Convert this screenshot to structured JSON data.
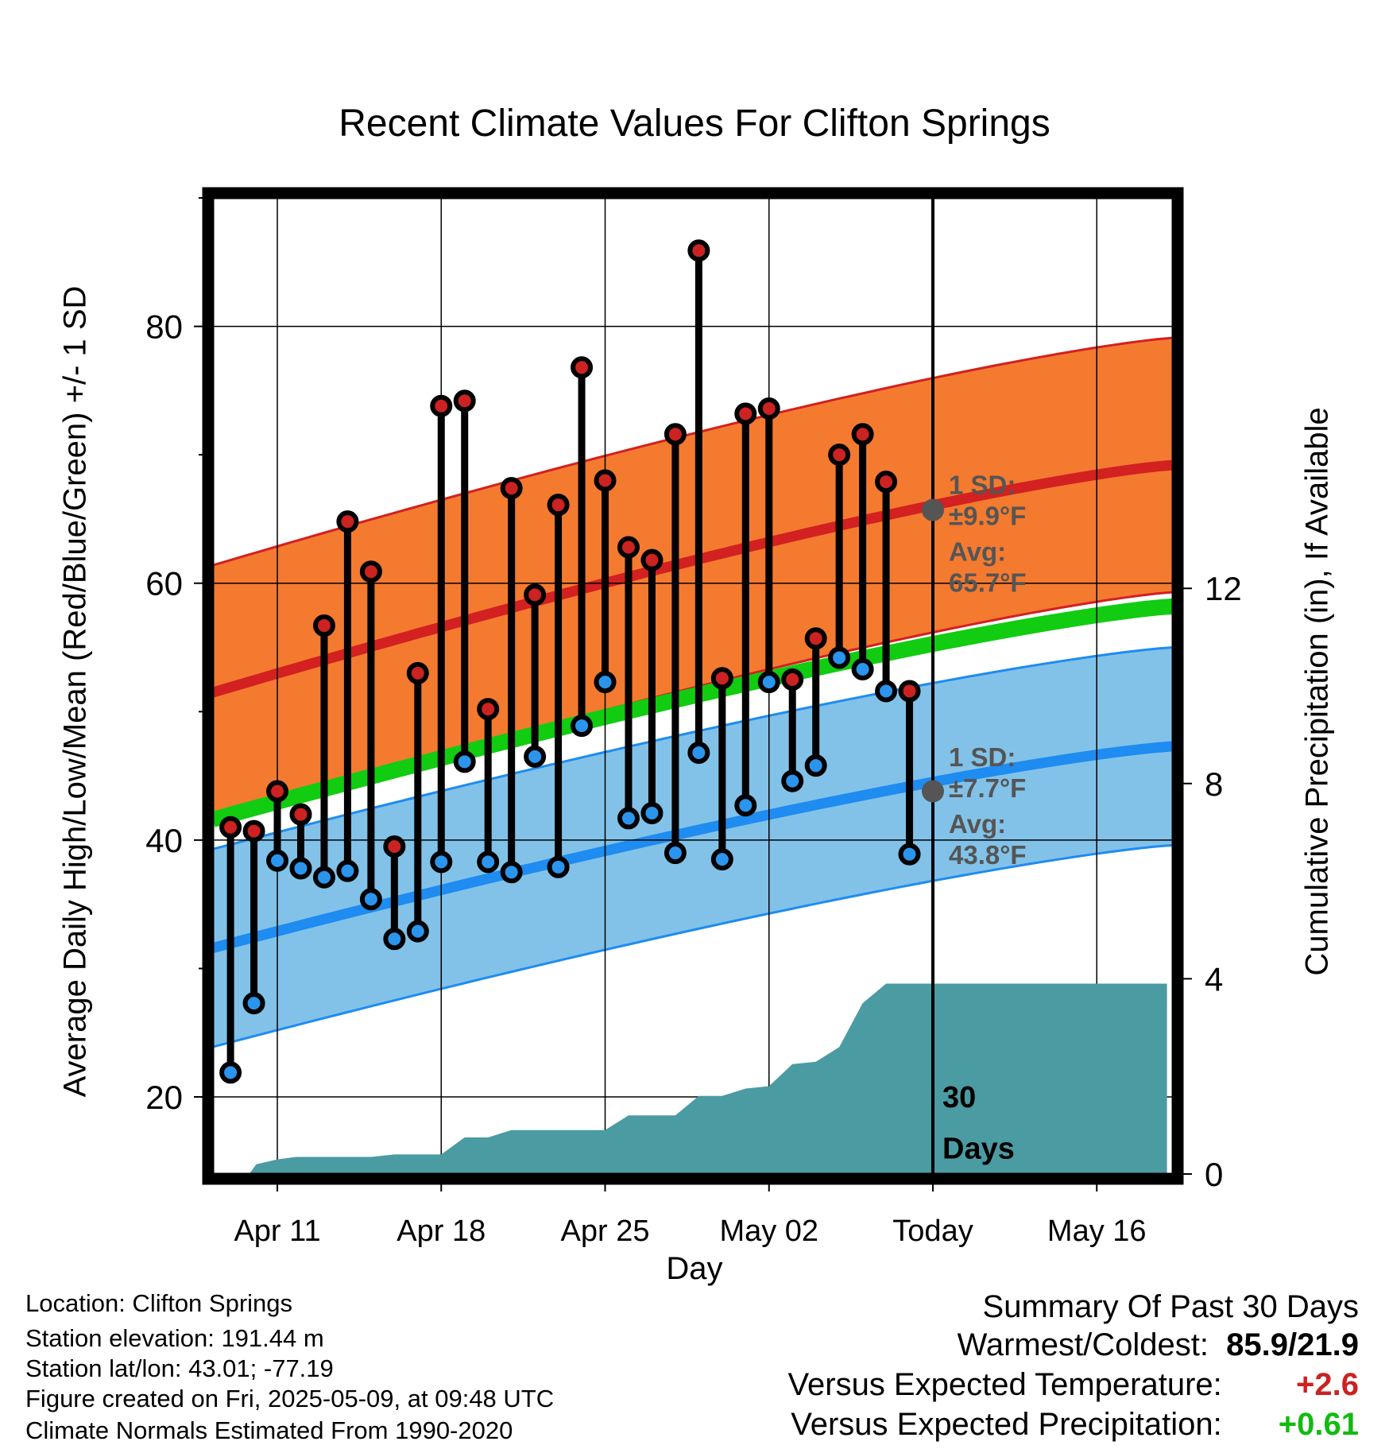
{
  "title": "Recent Climate Values For Clifton Springs",
  "colors": {
    "high_band": "#f47a30",
    "high_line": "#d32020",
    "low_band": "#82c2e8",
    "low_line": "#1e8cf0",
    "mean_line": "#11cc11",
    "precip": "#4b9ba3",
    "marker_high": "#cc2222",
    "marker_low": "#2b95ee"
  },
  "chart_data": {
    "type": "line",
    "title": "Recent Climate Values For Clifton Springs",
    "xlabel": "Day",
    "ylabel": "Average Daily High/Low/Mean (Red/Blue/Green) +/- 1 SD",
    "y2label": "Cumulative Precipitation (in), If Available",
    "xlim": [
      -0.75,
      40.25
    ],
    "ylim": [
      14,
      90
    ],
    "y2lim": [
      0,
      20
    ],
    "x_ticks": [
      {
        "x": 2,
        "label": "Apr 11"
      },
      {
        "x": 9,
        "label": "Apr 18"
      },
      {
        "x": 16,
        "label": "Apr 25"
      },
      {
        "x": 23,
        "label": "May 02"
      },
      {
        "x": 30,
        "label": "Today"
      },
      {
        "x": 37,
        "label": "May 16"
      }
    ],
    "y_ticks": [
      20,
      40,
      60,
      80
    ],
    "y_minor_ticks": [
      30,
      50,
      70,
      90
    ],
    "y2_ticks": [
      0,
      4,
      8,
      12
    ],
    "grid": true,
    "today_x": 30,
    "today_label": [
      "30",
      "Days"
    ],
    "daily_highs": [
      41,
      40.7,
      43.8,
      42,
      56.7,
      64.8,
      60.9,
      39.5,
      53,
      73.8,
      74.2,
      50.2,
      67.4,
      59.1,
      66.1,
      76.8,
      68,
      62.8,
      61.8,
      71.6,
      85.9,
      52.6,
      73.2,
      73.6,
      52.5,
      55.7,
      70,
      71.6,
      67.9,
      51.6
    ],
    "daily_lows": [
      21.9,
      27.3,
      38.4,
      37.8,
      37.1,
      37.6,
      35.4,
      32.3,
      32.9,
      38.3,
      46.1,
      38.3,
      37.5,
      46.5,
      37.9,
      48.9,
      52.3,
      41.7,
      42.1,
      39,
      46.8,
      38.5,
      42.7,
      52.3,
      44.6,
      45.8,
      54.2,
      53.3,
      51.6,
      38.9
    ],
    "normal_high_avg": [
      51.5,
      69.2
    ],
    "normal_low_avg": [
      31.6,
      47.3
    ],
    "high_sd": 9.9,
    "low_sd": 7.7,
    "normal_mean_avg": [
      41.6,
      58.2
    ],
    "precip_cumulative": [
      [
        -0.5,
        0
      ],
      [
        0.8,
        0
      ],
      [
        1.1,
        0.2
      ],
      [
        2,
        0.3
      ],
      [
        2.8,
        0.35
      ],
      [
        4,
        0.35
      ],
      [
        5,
        0.35
      ],
      [
        6,
        0.35
      ],
      [
        7,
        0.4
      ],
      [
        8,
        0.4
      ],
      [
        9,
        0.4
      ],
      [
        10,
        0.75
      ],
      [
        11,
        0.75
      ],
      [
        12,
        0.9
      ],
      [
        13,
        0.9
      ],
      [
        14,
        0.9
      ],
      [
        15,
        0.9
      ],
      [
        16,
        0.9
      ],
      [
        17,
        1.2
      ],
      [
        18,
        1.2
      ],
      [
        19,
        1.2
      ],
      [
        20,
        1.6
      ],
      [
        21,
        1.6
      ],
      [
        22,
        1.75
      ],
      [
        23,
        1.8
      ],
      [
        24,
        2.25
      ],
      [
        25,
        2.3
      ],
      [
        26,
        2.6
      ],
      [
        27,
        3.5
      ],
      [
        28,
        3.9
      ],
      [
        29,
        3.9
      ],
      [
        30,
        3.9
      ],
      [
        35,
        3.9
      ],
      [
        40,
        3.9
      ]
    ],
    "annotations": {
      "high": {
        "sd_label": "1 SD:",
        "sd_value": "±9.9°F",
        "avg_label": "Avg:",
        "avg_value": "65.7°F",
        "avg": 65.7
      },
      "low": {
        "sd_label": "1 SD:",
        "sd_value": "±7.7°F",
        "avg_label": "Avg:",
        "avg_value": "43.8°F",
        "avg": 43.8
      }
    }
  },
  "info": {
    "location": "Location: Clifton Springs",
    "elevation": "Station elevation: 191.44 m",
    "latlon": "Station lat/lon: 43.01; -77.19",
    "created": "Figure created on Fri, 2025-05-09, at 09:48 UTC",
    "normals": "Climate Normals Estimated From 1990-2020"
  },
  "summary": {
    "title": "Summary Of Past 30 Days",
    "warmest_label": "Warmest/Coldest:",
    "warmest_value": "85.9/21.9",
    "temp_label": "Versus Expected Temperature:",
    "temp_value": "+2.6",
    "precip_label": "Versus Expected Precipitation:",
    "precip_value": "+0.61"
  }
}
